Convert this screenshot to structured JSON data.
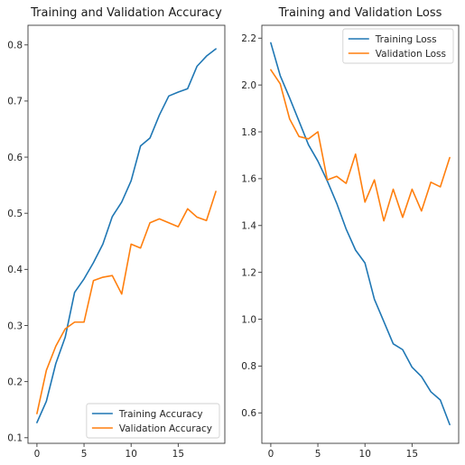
{
  "chart_data": [
    {
      "type": "line",
      "title": "Training and Validation Accuracy",
      "xlabel": "",
      "ylabel": "",
      "xlim": [
        -0.95,
        19.95
      ],
      "ylim": [
        0.09,
        0.835
      ],
      "xticks": [
        0,
        5,
        10,
        15
      ],
      "xtick_labels": [
        "0",
        "5",
        "10",
        "15"
      ],
      "yticks": [
        0.1,
        0.2,
        0.3,
        0.4,
        0.5,
        0.6,
        0.7,
        0.8
      ],
      "ytick_labels": [
        "0.1",
        "0.2",
        "0.3",
        "0.4",
        "0.5",
        "0.6",
        "0.7",
        "0.8"
      ],
      "legend_position": "lower-right",
      "grid": false,
      "x": [
        0,
        1,
        2,
        3,
        4,
        5,
        6,
        7,
        8,
        9,
        10,
        11,
        12,
        13,
        14,
        15,
        16,
        17,
        18,
        19
      ],
      "series": [
        {
          "name": "Training Accuracy",
          "color": "#1f77b4",
          "values": [
            0.127,
            0.165,
            0.232,
            0.279,
            0.359,
            0.383,
            0.412,
            0.445,
            0.494,
            0.52,
            0.558,
            0.62,
            0.634,
            0.675,
            0.709,
            0.716,
            0.722,
            0.762,
            0.78,
            0.793
          ]
        },
        {
          "name": "Validation Accuracy",
          "color": "#ff7f0e",
          "values": [
            0.143,
            0.22,
            0.263,
            0.294,
            0.306,
            0.306,
            0.38,
            0.386,
            0.389,
            0.356,
            0.445,
            0.438,
            0.483,
            0.49,
            0.483,
            0.476,
            0.508,
            0.493,
            0.487,
            0.539
          ]
        }
      ]
    },
    {
      "type": "line",
      "title": "Training and Validation Loss",
      "xlabel": "",
      "ylabel": "",
      "xlim": [
        -0.95,
        19.95
      ],
      "ylim": [
        0.47,
        2.255
      ],
      "xticks": [
        0,
        5,
        10,
        15
      ],
      "xtick_labels": [
        "0",
        "5",
        "10",
        "15"
      ],
      "yticks": [
        0.6,
        0.8,
        1.0,
        1.2,
        1.4,
        1.6,
        1.8,
        2.0,
        2.2
      ],
      "ytick_labels": [
        "0.6",
        "0.8",
        "1.0",
        "1.2",
        "1.4",
        "1.6",
        "1.8",
        "2.0",
        "2.2"
      ],
      "legend_position": "upper-right",
      "grid": false,
      "x": [
        0,
        1,
        2,
        3,
        4,
        5,
        6,
        7,
        8,
        9,
        10,
        11,
        12,
        13,
        14,
        15,
        16,
        17,
        18,
        19
      ],
      "series": [
        {
          "name": "Training Loss",
          "color": "#1f77b4",
          "values": [
            2.18,
            2.04,
            1.945,
            1.845,
            1.745,
            1.675,
            1.59,
            1.495,
            1.385,
            1.295,
            1.24,
            1.085,
            0.99,
            0.895,
            0.87,
            0.795,
            0.755,
            0.69,
            0.655,
            0.55
          ]
        },
        {
          "name": "Validation Loss",
          "color": "#ff7f0e",
          "values": [
            2.065,
            2.005,
            1.855,
            1.78,
            1.77,
            1.8,
            1.595,
            1.61,
            1.58,
            1.705,
            1.5,
            1.595,
            1.42,
            1.555,
            1.435,
            1.555,
            1.462,
            1.585,
            1.565,
            1.69
          ]
        }
      ]
    }
  ]
}
